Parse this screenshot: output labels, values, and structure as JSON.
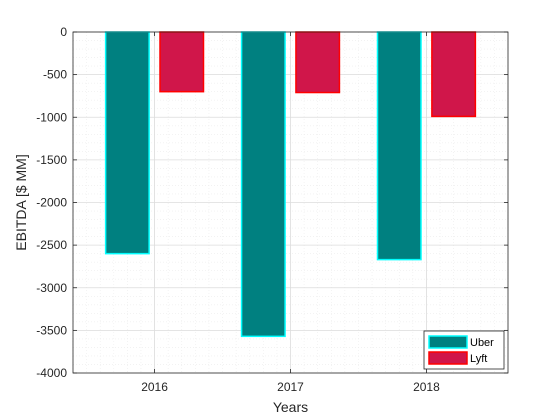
{
  "chart_data": {
    "type": "bar",
    "title": "",
    "xlabel": "Years",
    "ylabel": "EBITDA [$ MM]",
    "categories": [
      "2016",
      "2017",
      "2018"
    ],
    "series": [
      {
        "name": "Uber",
        "values": [
          -2600,
          -3570,
          -2670
        ],
        "fill": "#008080",
        "edge": "#00ffff"
      },
      {
        "name": "Lyft",
        "values": [
          -700,
          -710,
          -990
        ],
        "fill": "#d0164a",
        "edge": "#ff0000"
      }
    ],
    "ylim": [
      -4000,
      0
    ],
    "yticks": [
      0,
      -500,
      -1000,
      -1500,
      -2000,
      -2500,
      -3000,
      -3500,
      -4000
    ],
    "grid": true,
    "minor_grid": true,
    "legend_position": "bottom-right"
  }
}
